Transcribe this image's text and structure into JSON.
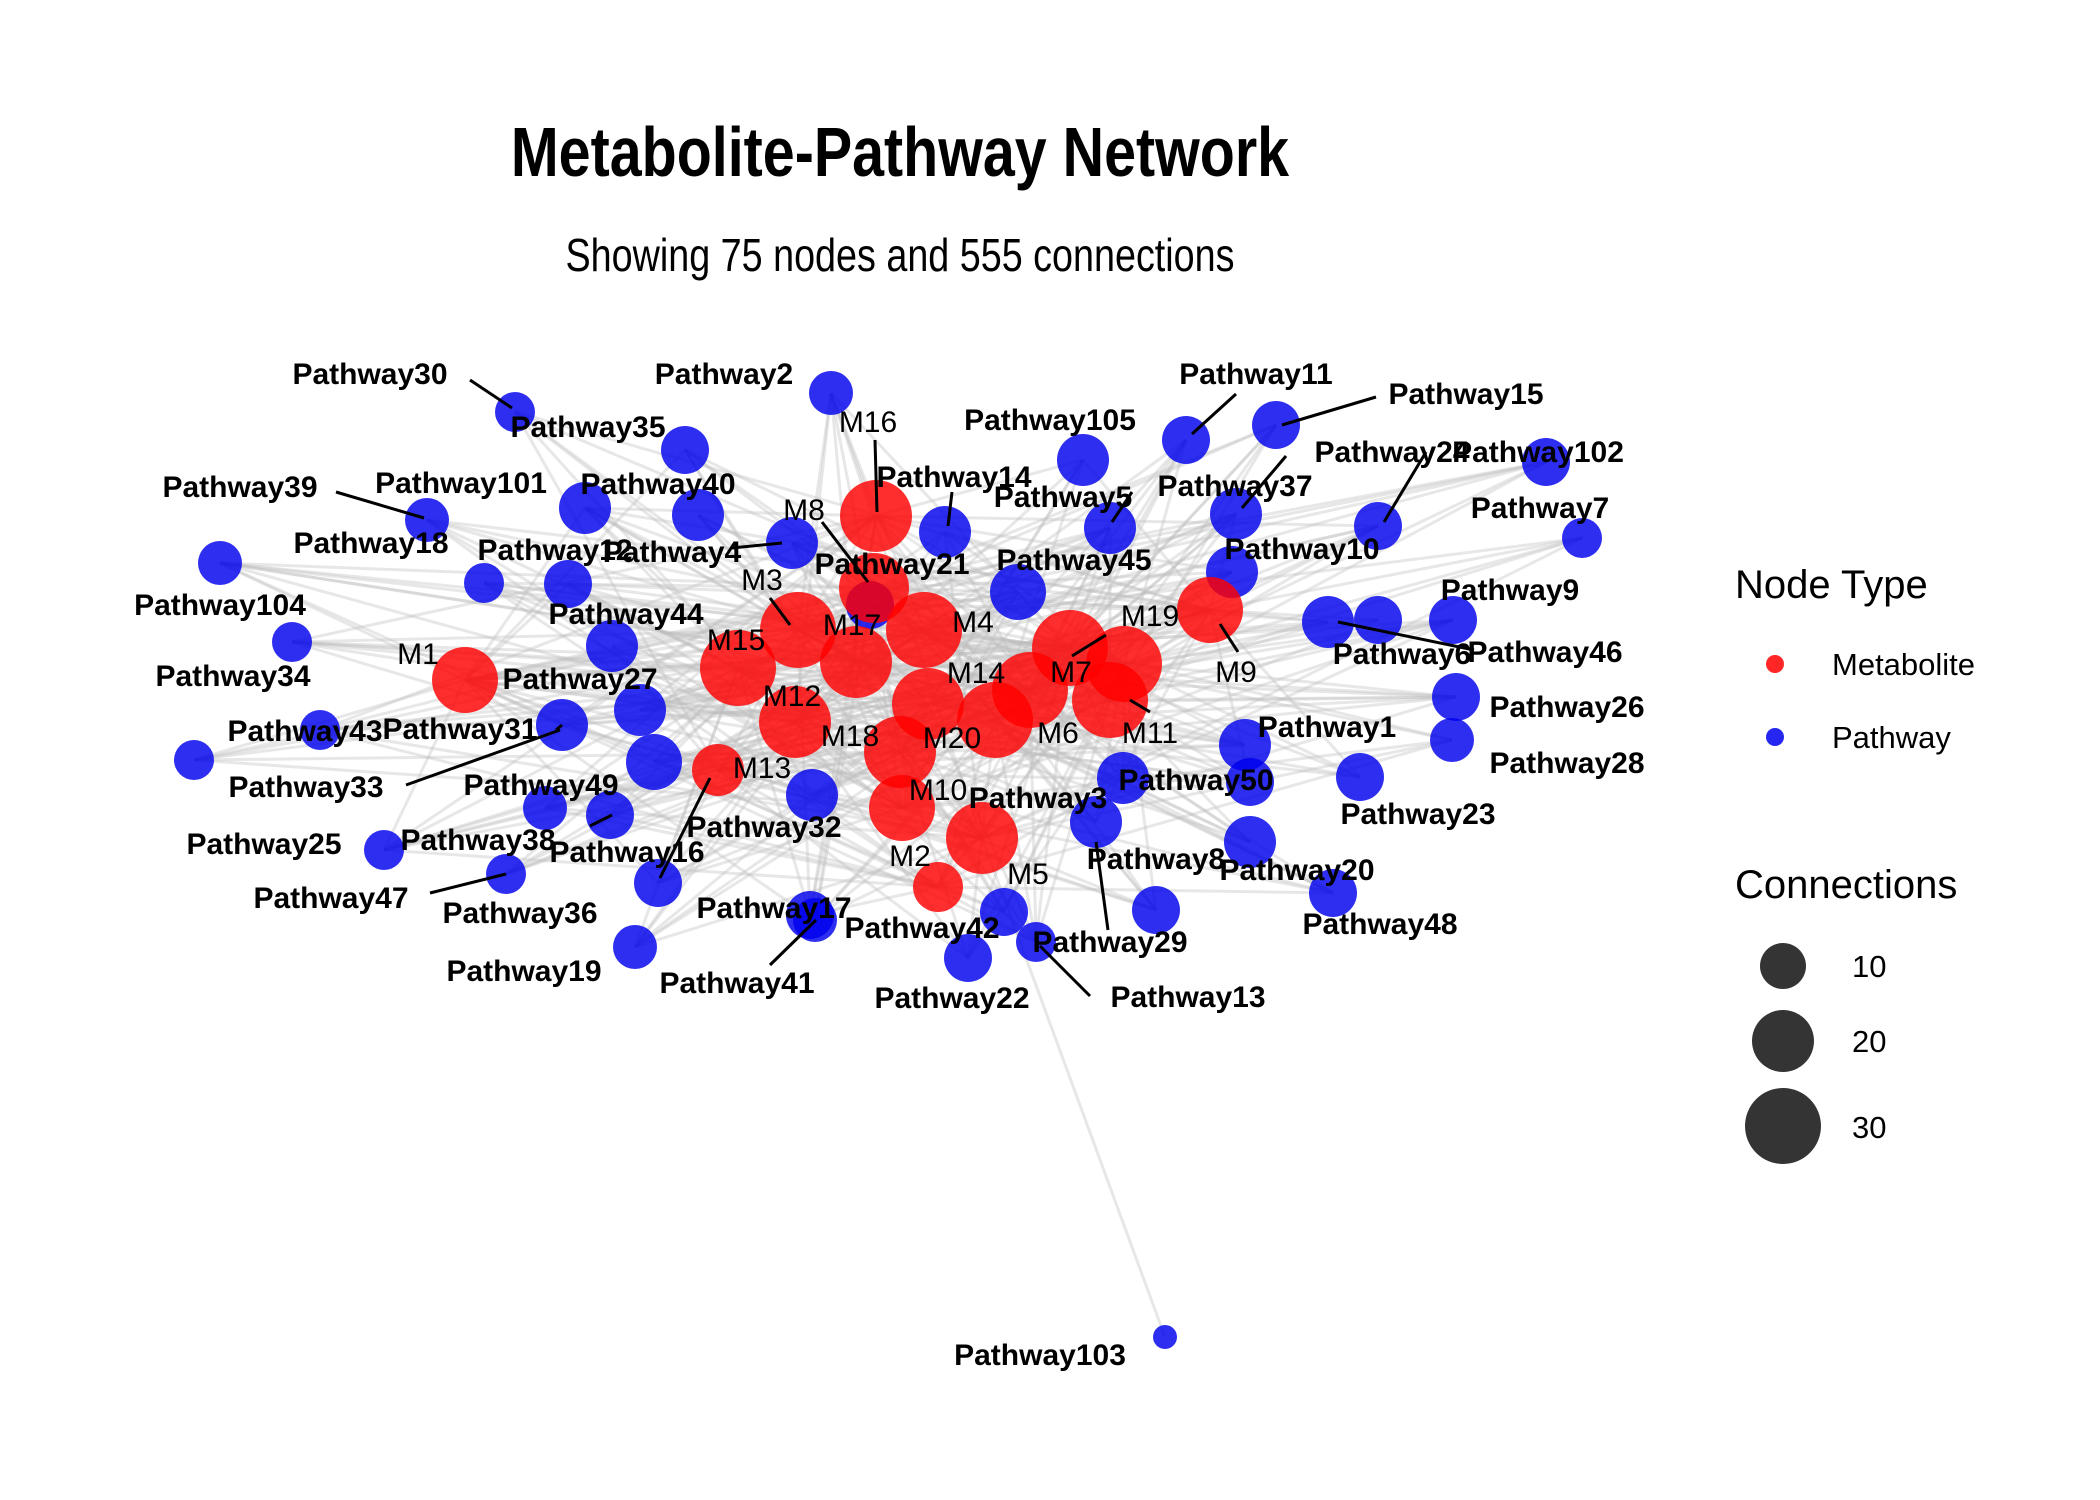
{
  "title": "Metabolite-Pathway Network",
  "subtitle": "Showing 75 nodes and 555 connections",
  "legend": {
    "node_type_title": "Node Type",
    "node_types": [
      {
        "label": "Metabolite",
        "color": "#ff0000"
      },
      {
        "label": "Pathway",
        "color": "#0000ee"
      }
    ],
    "connections_title": "Connections",
    "connections_sizes": [
      {
        "label": "10",
        "value": 10
      },
      {
        "label": "20",
        "value": 20
      },
      {
        "label": "30",
        "value": 30
      }
    ]
  },
  "colors": {
    "metabolite": "#ff0000",
    "pathway": "#0000ee",
    "edge": "#bdbdbd"
  },
  "metabolites": [
    "M1",
    "M2",
    "M3",
    "M4",
    "M5",
    "M6",
    "M7",
    "M8",
    "M9",
    "M10",
    "M11",
    "M12",
    "M13",
    "M14",
    "M15",
    "M16",
    "M17",
    "M18",
    "M19",
    "M20"
  ],
  "pathways": [
    "Pathway1",
    "Pathway2",
    "Pathway3",
    "Pathway4",
    "Pathway5",
    "Pathway6",
    "Pathway7",
    "Pathway8",
    "Pathway9",
    "Pathway10",
    "Pathway11",
    "Pathway12",
    "Pathway13",
    "Pathway14",
    "Pathway15",
    "Pathway16",
    "Pathway17",
    "Pathway18",
    "Pathway19",
    "Pathway20",
    "Pathway21",
    "Pathway22",
    "Pathway23",
    "Pathway24",
    "Pathway25",
    "Pathway26",
    "Pathway27",
    "Pathway28",
    "Pathway29",
    "Pathway30",
    "Pathway31",
    "Pathway32",
    "Pathway33",
    "Pathway34",
    "Pathway35",
    "Pathway36",
    "Pathway37",
    "Pathway38",
    "Pathway39",
    "Pathway40",
    "Pathway41",
    "Pathway42",
    "Pathway43",
    "Pathway44",
    "Pathway45",
    "Pathway46",
    "Pathway47",
    "Pathway48",
    "Pathway49",
    "Pathway50",
    "Pathway101",
    "Pathway102",
    "Pathway103",
    "Pathway104",
    "Pathway105"
  ]
}
